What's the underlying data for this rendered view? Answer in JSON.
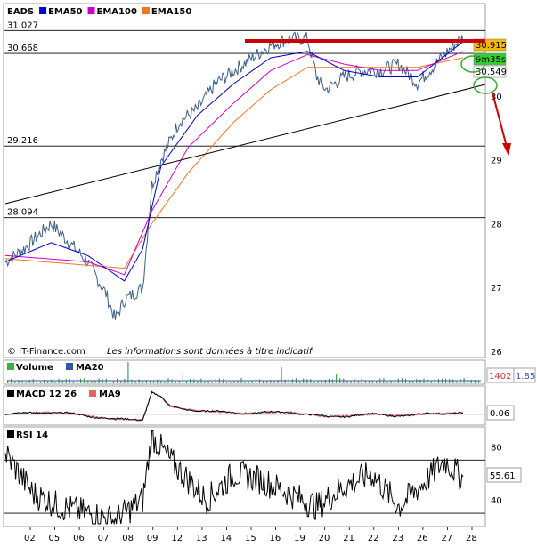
{
  "chart_data": [
    {
      "type": "line",
      "symbol": "EADS",
      "legend": [
        {
          "name": "EADS",
          "color": "#404040"
        },
        {
          "name": "EMA50",
          "color": "#0000cc"
        },
        {
          "name": "EMA100",
          "color": "#cc00cc"
        },
        {
          "name": "EMA150",
          "color": "#ee7722"
        }
      ],
      "ylim": [
        25.9,
        31.45
      ],
      "y_ticks": [
        "30",
        "29",
        "28",
        "27",
        "26"
      ],
      "y_tick_values": [
        30,
        29,
        28,
        27,
        26
      ],
      "levels": [
        {
          "label": "31.027",
          "value": 31.027
        },
        {
          "label": "30.668",
          "value": 30.668
        },
        {
          "label": "29.216",
          "value": 29.216
        },
        {
          "label": "28.094",
          "value": 28.094
        }
      ],
      "price_boxes": [
        {
          "label": "30.915",
          "value": 30.915,
          "color": "#f5b800"
        },
        {
          "label": "9m35s",
          "value": 30.7,
          "color": "#33cc33"
        },
        {
          "label": "30.549",
          "value": 30.549,
          "color": "#ffffff"
        }
      ],
      "credit": "© IT-Finance.com",
      "disclaimer": "Les informations sont données à titre indicatif.",
      "x_ticks": [
        "02",
        "05",
        "06",
        "07",
        "08",
        "09",
        "12",
        "13",
        "14",
        "15",
        "16",
        "19",
        "20",
        "21",
        "22",
        "23",
        "26",
        "27",
        "28"
      ],
      "price_keypoints": [
        [
          0,
          27.4
        ],
        [
          2,
          27.6
        ],
        [
          5,
          28.0
        ],
        [
          7,
          27.7
        ],
        [
          9,
          27.4
        ],
        [
          11,
          26.9
        ],
        [
          12,
          26.5
        ],
        [
          13,
          26.8
        ],
        [
          15,
          27.0
        ],
        [
          16,
          28.6
        ],
        [
          17,
          29.0
        ],
        [
          19,
          29.6
        ],
        [
          21,
          29.8
        ],
        [
          23,
          30.2
        ],
        [
          25,
          30.4
        ],
        [
          27,
          30.6
        ],
        [
          29,
          30.8
        ],
        [
          31,
          30.9
        ],
        [
          33,
          30.9
        ],
        [
          34,
          30.3
        ],
        [
          35,
          30.1
        ],
        [
          37,
          30.3
        ],
        [
          39,
          30.4
        ],
        [
          41,
          30.4
        ],
        [
          43,
          30.5
        ],
        [
          45,
          30.2
        ],
        [
          47,
          30.5
        ],
        [
          49,
          30.8
        ],
        [
          50,
          30.92
        ]
      ],
      "ema50_keypoints": [
        [
          0,
          27.4
        ],
        [
          5,
          27.7
        ],
        [
          9,
          27.5
        ],
        [
          13,
          27.1
        ],
        [
          15,
          27.6
        ],
        [
          17,
          28.9
        ],
        [
          21,
          29.7
        ],
        [
          25,
          30.2
        ],
        [
          29,
          30.6
        ],
        [
          33,
          30.7
        ],
        [
          37,
          30.4
        ],
        [
          41,
          30.3
        ],
        [
          45,
          30.3
        ],
        [
          50,
          30.85
        ]
      ],
      "ema100_keypoints": [
        [
          0,
          27.5
        ],
        [
          9,
          27.4
        ],
        [
          13,
          27.2
        ],
        [
          16,
          28.2
        ],
        [
          20,
          29.2
        ],
        [
          25,
          29.9
        ],
        [
          29,
          30.4
        ],
        [
          33,
          30.65
        ],
        [
          37,
          30.5
        ],
        [
          41,
          30.4
        ],
        [
          45,
          30.4
        ],
        [
          50,
          30.7
        ]
      ],
      "ema150_keypoints": [
        [
          0,
          27.45
        ],
        [
          13,
          27.3
        ],
        [
          16,
          28.0
        ],
        [
          20,
          28.8
        ],
        [
          25,
          29.6
        ],
        [
          29,
          30.1
        ],
        [
          33,
          30.45
        ],
        [
          37,
          30.45
        ],
        [
          41,
          30.45
        ],
        [
          45,
          30.45
        ],
        [
          50,
          30.6
        ]
      ]
    },
    {
      "type": "bar",
      "legend": [
        {
          "name": "Volume",
          "color": "#44aa44"
        },
        {
          "name": "MA20",
          "color": "#3355aa"
        }
      ],
      "value_label": "1402",
      "value_label_2": "1.85"
    },
    {
      "type": "line",
      "legend": [
        {
          "name": "MACD 12 26",
          "color": "#000000"
        },
        {
          "name": "MA9",
          "color": "#dd6666"
        }
      ],
      "value_label": "0.06"
    },
    {
      "type": "line",
      "legend": [
        {
          "name": "RSI 14",
          "color": "#000000"
        }
      ],
      "y_ticks": [
        "80",
        "40"
      ],
      "y_tick_values": [
        80,
        40
      ],
      "ylim": [
        20,
        95
      ],
      "reference_levels": [
        70,
        30
      ],
      "value_label": "55.61",
      "value": 55.61
    }
  ]
}
